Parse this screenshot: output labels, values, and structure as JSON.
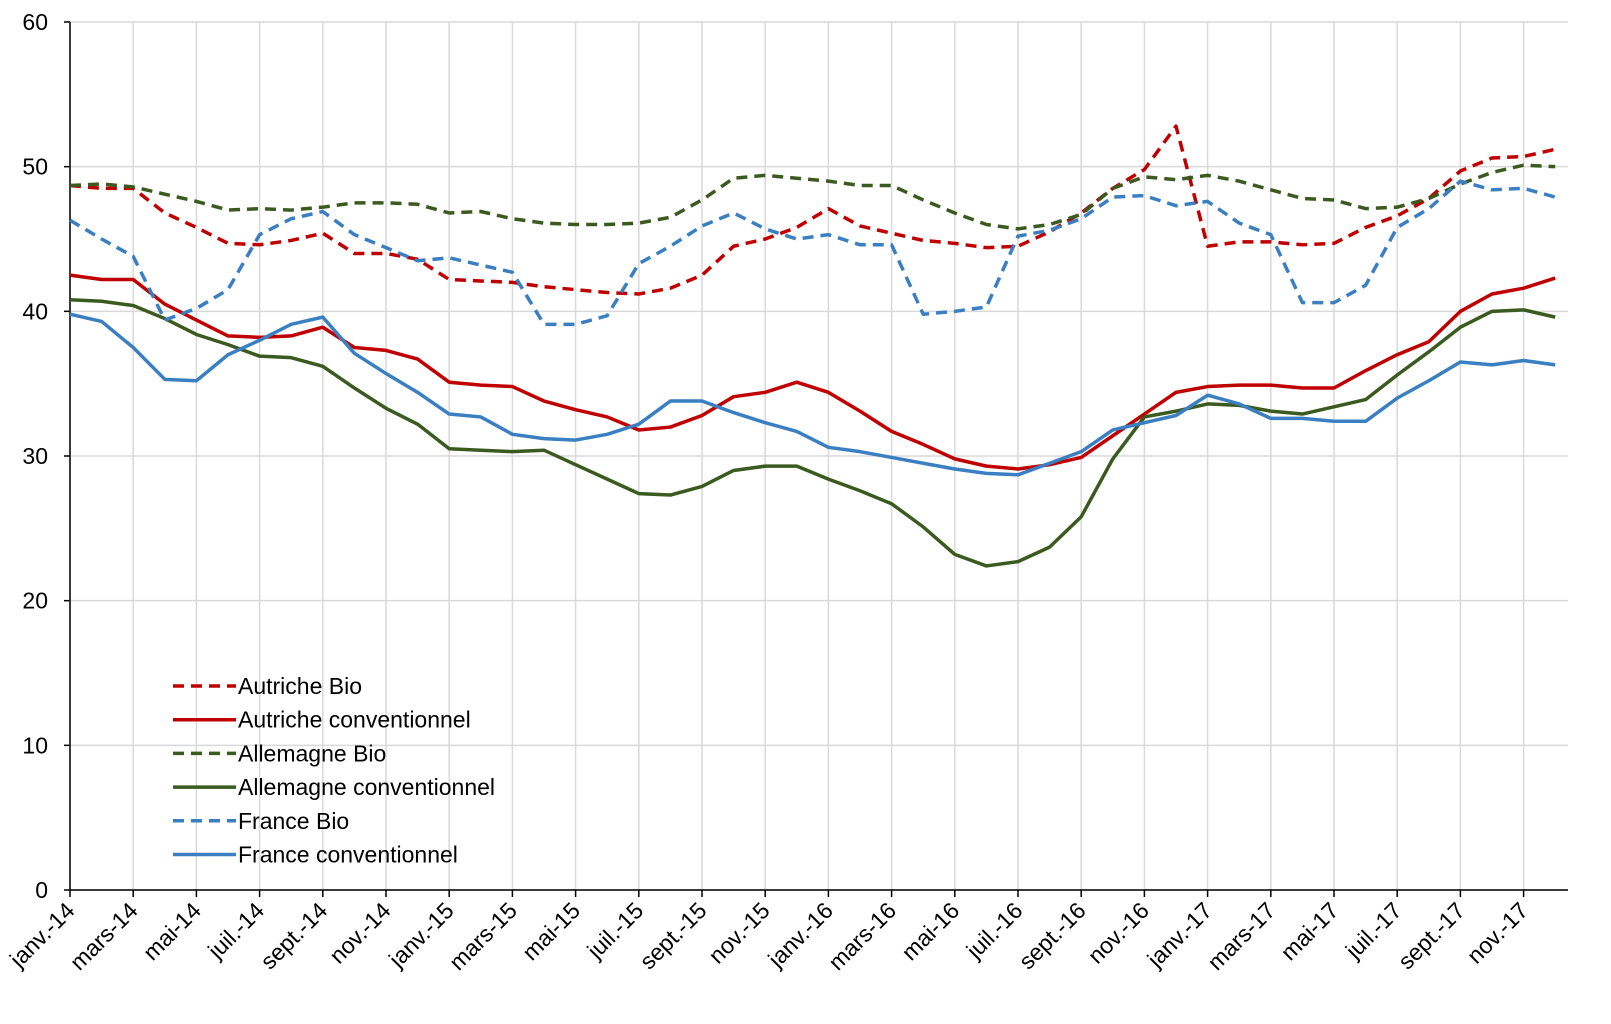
{
  "chart_data": {
    "type": "line",
    "categories": [
      "janv.-14",
      null,
      "mars-14",
      null,
      "mai-14",
      null,
      "juil.-14",
      null,
      "sept.-14",
      null,
      "nov.-14",
      null,
      "janv.-15",
      null,
      "mars-15",
      null,
      "mai-15",
      null,
      "juil.-15",
      null,
      "sept.-15",
      null,
      "nov.-15",
      null,
      "janv.-16",
      null,
      "mars-16",
      null,
      "mai-16",
      null,
      "juil.-16",
      null,
      "sept.-16",
      null,
      "nov.-16",
      null,
      "janv.-17",
      null,
      "mars-17",
      null,
      "mai-17",
      null,
      "juil.-17",
      null,
      "sept.-17",
      null,
      "nov.-17",
      null
    ],
    "ylim": [
      0,
      60
    ],
    "yticks": [
      0,
      10,
      20,
      30,
      40,
      50,
      60
    ],
    "grid": true,
    "legend": "lower-left",
    "series": [
      {
        "name": "Autriche Bio",
        "color": "#c00000",
        "style": "dashed",
        "values": [
          48.7,
          48.5,
          48.5,
          46.8,
          45.8,
          44.7,
          44.6,
          44.9,
          45.4,
          44.0,
          44.0,
          43.6,
          42.2,
          42.1,
          42.0,
          41.7,
          41.5,
          41.3,
          41.2,
          41.6,
          42.5,
          44.5,
          45.0,
          45.8,
          47.1,
          45.9,
          45.4,
          44.9,
          44.7,
          44.4,
          44.5,
          45.5,
          46.8,
          48.5,
          49.8,
          52.8,
          44.5,
          44.8,
          44.8,
          44.6,
          44.7,
          45.8,
          46.6,
          47.8,
          49.7,
          50.6,
          50.7,
          51.2
        ]
      },
      {
        "name": "Autriche conventionnel",
        "color": "#c00000",
        "style": "solid",
        "values": [
          42.5,
          42.2,
          42.2,
          40.5,
          39.4,
          38.3,
          38.2,
          38.3,
          38.9,
          37.5,
          37.3,
          36.7,
          35.1,
          34.9,
          34.8,
          33.8,
          33.2,
          32.7,
          31.8,
          32.0,
          32.8,
          34.1,
          34.4,
          35.1,
          34.4,
          33.1,
          31.7,
          30.8,
          29.8,
          29.3,
          29.1,
          29.4,
          29.9,
          31.4,
          32.9,
          34.4,
          34.8,
          34.9,
          34.9,
          34.7,
          34.7,
          35.9,
          37.0,
          37.9,
          40.0,
          41.2,
          41.6,
          42.3
        ]
      },
      {
        "name": "Allemagne Bio",
        "color": "#3b5a1f",
        "style": "dashed",
        "values": [
          48.7,
          48.8,
          48.6,
          48.1,
          47.6,
          47.0,
          47.1,
          47.0,
          47.2,
          47.5,
          47.5,
          47.4,
          46.8,
          46.9,
          46.4,
          46.1,
          46.0,
          46.0,
          46.1,
          46.5,
          47.7,
          49.2,
          49.4,
          49.2,
          49.0,
          48.7,
          48.7,
          47.7,
          46.8,
          46.0,
          45.7,
          46.0,
          46.7,
          48.5,
          49.3,
          49.1,
          49.4,
          49.0,
          48.4,
          47.8,
          47.7,
          47.1,
          47.2,
          47.8,
          48.8,
          49.6,
          50.1,
          50.0
        ]
      },
      {
        "name": "Allemagne conventionnel",
        "color": "#3b5a1f",
        "style": "solid",
        "values": [
          40.8,
          40.7,
          40.4,
          39.5,
          38.4,
          37.7,
          36.9,
          36.8,
          36.2,
          34.7,
          33.3,
          32.2,
          30.5,
          30.4,
          30.3,
          30.4,
          29.4,
          28.4,
          27.4,
          27.3,
          27.9,
          29.0,
          29.3,
          29.3,
          28.4,
          27.6,
          26.7,
          25.1,
          23.2,
          22.4,
          22.7,
          23.7,
          25.8,
          29.8,
          32.7,
          33.1,
          33.6,
          33.5,
          33.1,
          32.9,
          33.4,
          33.9,
          35.6,
          37.2,
          38.9,
          40.0,
          40.1,
          39.6
        ]
      },
      {
        "name": "France Bio",
        "color": "#3a7fc1",
        "style": "dashed",
        "values": [
          46.3,
          45.0,
          43.8,
          39.4,
          40.2,
          41.5,
          45.3,
          46.4,
          46.9,
          45.3,
          44.4,
          43.5,
          43.7,
          43.2,
          42.7,
          39.1,
          39.1,
          39.7,
          43.3,
          44.5,
          45.9,
          46.8,
          45.7,
          45.0,
          45.3,
          44.6,
          44.6,
          39.8,
          40.0,
          40.3,
          45.2,
          45.6,
          46.4,
          47.9,
          48.0,
          47.3,
          47.6,
          46.1,
          45.3,
          40.6,
          40.6,
          41.8,
          45.8,
          47.1,
          49.0,
          48.4,
          48.5,
          47.9
        ]
      },
      {
        "name": "France conventionnel",
        "color": "#3a7fc1",
        "style": "solid",
        "values": [
          39.8,
          39.3,
          37.5,
          35.3,
          35.2,
          37.0,
          38.0,
          39.1,
          39.6,
          37.1,
          35.7,
          34.4,
          32.9,
          32.7,
          31.5,
          31.2,
          31.1,
          31.5,
          32.2,
          33.8,
          33.8,
          33.0,
          32.3,
          31.7,
          30.6,
          30.3,
          29.9,
          29.5,
          29.1,
          28.8,
          28.7,
          29.5,
          30.3,
          31.8,
          32.3,
          32.8,
          34.2,
          33.6,
          32.6,
          32.6,
          32.4,
          32.4,
          34.0,
          35.2,
          36.5,
          36.3,
          36.6,
          36.3
        ]
      }
    ]
  }
}
